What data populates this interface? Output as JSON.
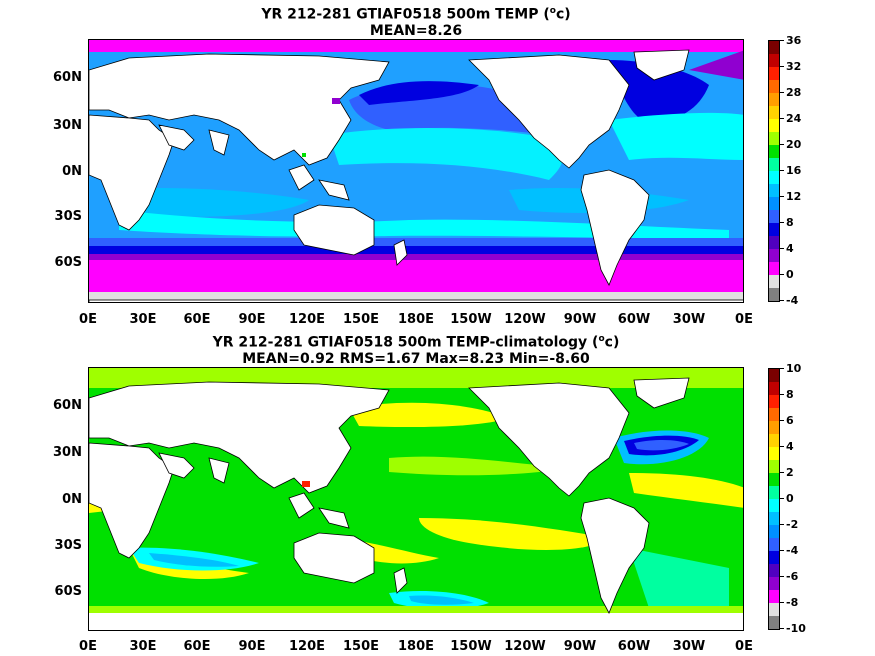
{
  "panels": [
    {
      "title_line1": "YR 212-281 GTIAF0518 500m TEMP (",
      "title_unit_sup": "o",
      "title_unit_tail": "c)",
      "title_line2": "MEAN=8.26",
      "colorbar_labels": [
        "36",
        "32",
        "28",
        "24",
        "20",
        "16",
        "12",
        "8",
        "4",
        "0",
        "-4"
      ],
      "colorbar_colors": [
        "#7a0000",
        "#c00000",
        "#ff2000",
        "#ff6a00",
        "#ff9e00",
        "#ffd200",
        "#ffff00",
        "#9fff00",
        "#00e000",
        "#00ffa0",
        "#00ffff",
        "#00c0ff",
        "#0090ff",
        "#3060ff",
        "#0000e0",
        "#5000c0",
        "#9000d0",
        "#ff00ff",
        "#e0e0e0",
        "#808080"
      ]
    },
    {
      "title_line1": "YR 212-281 GTIAF0518 500m TEMP-climatology (",
      "title_unit_sup": "o",
      "title_unit_tail": "c)",
      "title_line2": "MEAN=0.92   RMS=1.67   Max=8.23   Min=-8.60",
      "colorbar_labels": [
        "10",
        "8",
        "6",
        "4",
        "2",
        "0",
        "-2",
        "-4",
        "-6",
        "-8",
        "-10"
      ],
      "colorbar_colors": [
        "#7a0000",
        "#c00000",
        "#ff2000",
        "#ff6a00",
        "#ff9e00",
        "#ffd200",
        "#ffff00",
        "#9fff00",
        "#00e000",
        "#00ffa0",
        "#00ffff",
        "#00c0ff",
        "#0090ff",
        "#3060ff",
        "#0000e0",
        "#5000c0",
        "#9000d0",
        "#ff00ff",
        "#e0e0e0",
        "#808080"
      ]
    }
  ],
  "lat_labels": [
    "60N",
    "30N",
    "0N",
    "30S",
    "60S"
  ],
  "lon_labels": [
    "0E",
    "30E",
    "60E",
    "90E",
    "120E",
    "150E",
    "180E",
    "150W",
    "120W",
    "90W",
    "60W",
    "30W",
    "0E"
  ],
  "land_color": "#ffffff"
}
